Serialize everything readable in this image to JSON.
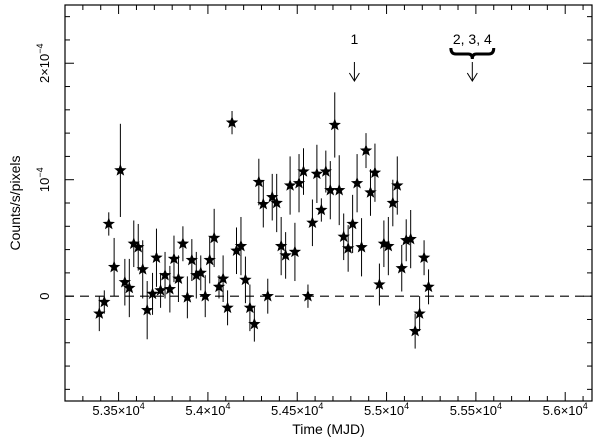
{
  "chart_data": {
    "type": "scatter",
    "xlabel": "Time (MJD)",
    "ylabel": "Counts/s/pixels",
    "xlim": [
      53200,
      56150
    ],
    "ylim": [
      -9e-05,
      0.00025
    ],
    "grid": false,
    "x_ticks": [
      {
        "value": 53500,
        "mantissa": "5.35",
        "exponent": "4"
      },
      {
        "value": 54000,
        "mantissa": "5.4",
        "exponent": "4"
      },
      {
        "value": 54500,
        "mantissa": "5.45",
        "exponent": "4"
      },
      {
        "value": 55000,
        "mantissa": "5.5",
        "exponent": "4"
      },
      {
        "value": 55500,
        "mantissa": "5.55",
        "exponent": "4"
      },
      {
        "value": 56000,
        "mantissa": "5.6",
        "exponent": "4"
      }
    ],
    "y_ticks": [
      {
        "value": 0,
        "text": "0"
      },
      {
        "value": 0.0001,
        "mantissa": "10",
        "exponent": "−4"
      },
      {
        "value": 0.0002,
        "mantissa": "2×10",
        "exponent": "−4"
      }
    ],
    "reference_line": {
      "y": 0,
      "style": "dashed"
    },
    "annotations": [
      {
        "text": "1",
        "x": 54820,
        "brace": false
      },
      {
        "text": "2, 3, 4",
        "x": 55480,
        "brace": true,
        "brace_x_range": [
          55360,
          55600
        ]
      }
    ],
    "points": [
      {
        "x": 53392,
        "y": -1.5e-05,
        "err": 1.5e-05
      },
      {
        "x": 53420,
        "y": -5e-06,
        "err": 1e-05
      },
      {
        "x": 53445,
        "y": 6.2e-05,
        "err": 1e-05
      },
      {
        "x": 53475,
        "y": 2.5e-05,
        "err": 2.5e-05
      },
      {
        "x": 53510,
        "y": 0.000108,
        "err": 4e-05
      },
      {
        "x": 53535,
        "y": 1.2e-05,
        "err": 2e-05
      },
      {
        "x": 53560,
        "y": 7e-06,
        "err": 2.5e-05
      },
      {
        "x": 53585,
        "y": 4.5e-05,
        "err": 2e-05
      },
      {
        "x": 53610,
        "y": 4.2e-05,
        "err": 2e-05
      },
      {
        "x": 53635,
        "y": 2.3e-05,
        "err": 2.5e-05
      },
      {
        "x": 53660,
        "y": -1.2e-05,
        "err": 2.5e-05
      },
      {
        "x": 53690,
        "y": 2e-06,
        "err": 1.8e-05
      },
      {
        "x": 53712,
        "y": 3.3e-05,
        "err": 2.5e-05
      },
      {
        "x": 53735,
        "y": 5e-06,
        "err": 1.5e-05
      },
      {
        "x": 53760,
        "y": 1.8e-05,
        "err": 2e-05
      },
      {
        "x": 53787,
        "y": 6e-06,
        "err": 2e-05
      },
      {
        "x": 53810,
        "y": 3.2e-05,
        "err": 2e-05
      },
      {
        "x": 53835,
        "y": 1.5e-05,
        "err": 2e-05
      },
      {
        "x": 53860,
        "y": 4.5e-05,
        "err": 1.5e-05
      },
      {
        "x": 53885,
        "y": -1e-06,
        "err": 1.8e-05
      },
      {
        "x": 53910,
        "y": 3.1e-05,
        "err": 1.8e-05
      },
      {
        "x": 53935,
        "y": 1.8e-05,
        "err": 2e-05
      },
      {
        "x": 53960,
        "y": 2e-05,
        "err": 1.5e-05
      },
      {
        "x": 53985,
        "y": 0.0,
        "err": 1.8e-05
      },
      {
        "x": 54010,
        "y": 3.1e-05,
        "err": 2e-05
      },
      {
        "x": 54035,
        "y": 5e-05,
        "err": 2.5e-05
      },
      {
        "x": 54062,
        "y": 8e-06,
        "err": 1e-05
      },
      {
        "x": 54085,
        "y": 1.5e-05,
        "err": 2e-05
      },
      {
        "x": 54110,
        "y": -1e-05,
        "err": 1.5e-05
      },
      {
        "x": 54135,
        "y": 0.000149,
        "err": 1e-05
      },
      {
        "x": 54160,
        "y": 3.9e-05,
        "err": 2e-05
      },
      {
        "x": 54185,
        "y": 4.3e-05,
        "err": 2.5e-05
      },
      {
        "x": 54210,
        "y": 1.4e-05,
        "err": 2e-05
      },
      {
        "x": 54235,
        "y": -1e-05,
        "err": 2e-05
      },
      {
        "x": 54260,
        "y": -2.4e-05,
        "err": 1.5e-05
      },
      {
        "x": 54285,
        "y": 9.8e-05,
        "err": 2e-05
      },
      {
        "x": 54310,
        "y": 7.9e-05,
        "err": 2e-05
      },
      {
        "x": 54335,
        "y": 0.0,
        "err": 1.5e-05
      },
      {
        "x": 54360,
        "y": 8.5e-05,
        "err": 2e-05
      },
      {
        "x": 54385,
        "y": 8e-05,
        "err": 2.5e-05
      },
      {
        "x": 54410,
        "y": 4.3e-05,
        "err": 2.5e-05
      },
      {
        "x": 54435,
        "y": 3.5e-05,
        "err": 2e-05
      },
      {
        "x": 54460,
        "y": 9.5e-05,
        "err": 2.5e-05
      },
      {
        "x": 54487,
        "y": 3.8e-05,
        "err": 2.5e-05
      },
      {
        "x": 54510,
        "y": 9.7e-05,
        "err": 2.5e-05
      },
      {
        "x": 54535,
        "y": 0.000107,
        "err": 2e-05
      },
      {
        "x": 54560,
        "y": 0.0,
        "err": 1e-05
      },
      {
        "x": 54585,
        "y": 6.3e-05,
        "err": 2e-05
      },
      {
        "x": 54610,
        "y": 0.000105,
        "err": 2.5e-05
      },
      {
        "x": 54635,
        "y": 7.4e-05,
        "err": 1e-05
      },
      {
        "x": 54660,
        "y": 0.000107,
        "err": 1.8e-05
      },
      {
        "x": 54685,
        "y": 9.1e-05,
        "err": 2.5e-05
      },
      {
        "x": 54710,
        "y": 0.000147,
        "err": 2.8e-05
      },
      {
        "x": 54735,
        "y": 9.1e-05,
        "err": 3e-05
      },
      {
        "x": 54760,
        "y": 5.1e-05,
        "err": 2e-05
      },
      {
        "x": 54785,
        "y": 4.1e-05,
        "err": 2e-05
      },
      {
        "x": 54810,
        "y": 6.2e-05,
        "err": 2.5e-05
      },
      {
        "x": 54835,
        "y": 9.7e-05,
        "err": 2.5e-05
      },
      {
        "x": 54860,
        "y": 4.2e-05,
        "err": 2.5e-05
      },
      {
        "x": 54885,
        "y": 0.000125,
        "err": 1.5e-05
      },
      {
        "x": 54910,
        "y": 8.9e-05,
        "err": 2e-05
      },
      {
        "x": 54935,
        "y": 0.000106,
        "err": 2.5e-05
      },
      {
        "x": 54960,
        "y": 1e-05,
        "err": 1.8e-05
      },
      {
        "x": 54985,
        "y": 4.5e-05,
        "err": 2e-05
      },
      {
        "x": 55010,
        "y": 4.3e-05,
        "err": 2.5e-05
      },
      {
        "x": 55035,
        "y": 8e-05,
        "err": 2e-05
      },
      {
        "x": 55060,
        "y": 9.5e-05,
        "err": 2.5e-05
      },
      {
        "x": 55085,
        "y": 2.4e-05,
        "err": 2e-05
      },
      {
        "x": 55110,
        "y": 4.8e-05,
        "err": 1.8e-05
      },
      {
        "x": 55135,
        "y": 4.9e-05,
        "err": 2.5e-05
      },
      {
        "x": 55160,
        "y": -3e-05,
        "err": 1.5e-05
      },
      {
        "x": 55185,
        "y": -1.5e-05,
        "err": 1.5e-05
      },
      {
        "x": 55210,
        "y": 3.3e-05,
        "err": 1.5e-05
      },
      {
        "x": 55235,
        "y": 8e-06,
        "err": 1.5e-05
      }
    ]
  }
}
